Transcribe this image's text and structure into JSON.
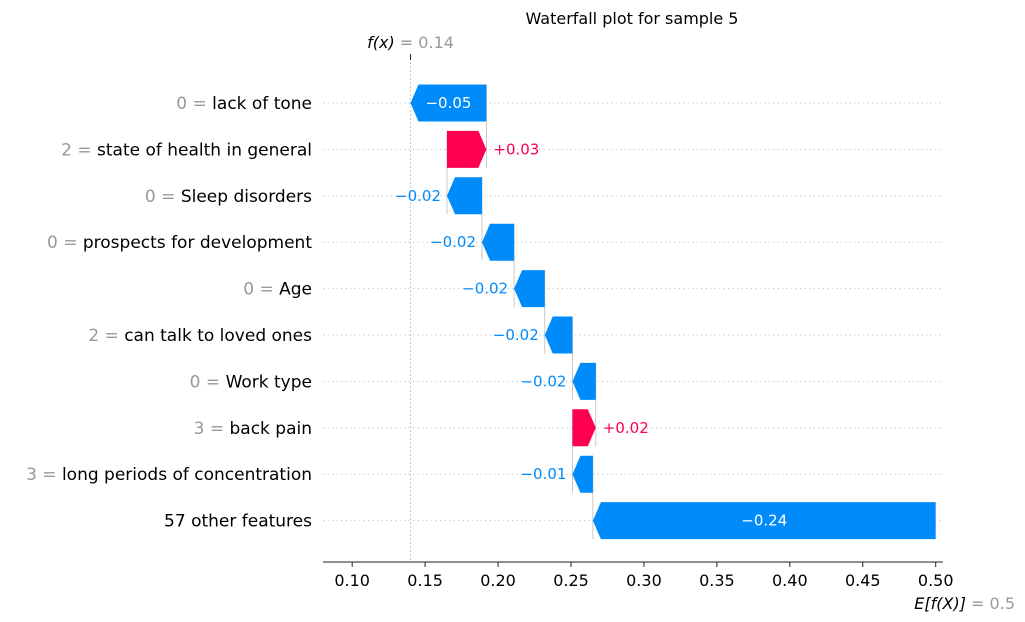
{
  "chart_data": {
    "type": "waterfall",
    "title": "Waterfall plot for sample 5",
    "base_value": 0.5,
    "base_value_label": "0.5",
    "base_value_name": "E[f(X)]",
    "output_value": 0.14,
    "output_value_label": "0.14",
    "output_value_name": "f(x)",
    "xlim": [
      0.08,
      0.505
    ],
    "x_ticks": [
      {
        "value": 0.1,
        "label": "0.10"
      },
      {
        "value": 0.15,
        "label": "0.15"
      },
      {
        "value": 0.2,
        "label": "0.20"
      },
      {
        "value": 0.25,
        "label": "0.25"
      },
      {
        "value": 0.3,
        "label": "0.30"
      },
      {
        "value": 0.35,
        "label": "0.35"
      },
      {
        "value": 0.4,
        "label": "0.40"
      },
      {
        "value": 0.45,
        "label": "0.45"
      },
      {
        "value": 0.5,
        "label": "0.50"
      }
    ],
    "colors": {
      "positive": "#ff0051",
      "negative": "#008bfb",
      "muted": "#999999"
    },
    "features": [
      {
        "value": "0",
        "name": "lack of tone",
        "start": 0.192,
        "end": 0.14,
        "label": "−0.05"
      },
      {
        "value": "2",
        "name": "state of health in general",
        "start": 0.165,
        "end": 0.192,
        "label": "+0.03"
      },
      {
        "value": "0",
        "name": "Sleep disorders",
        "start": 0.189,
        "end": 0.165,
        "label": "−0.02"
      },
      {
        "value": "0",
        "name": "prospects for development",
        "start": 0.211,
        "end": 0.189,
        "label": "−0.02"
      },
      {
        "value": "0",
        "name": "Age",
        "start": 0.232,
        "end": 0.211,
        "label": "−0.02"
      },
      {
        "value": "2",
        "name": "can talk to loved ones",
        "start": 0.251,
        "end": 0.232,
        "label": "−0.02"
      },
      {
        "value": "0",
        "name": "Work type",
        "start": 0.267,
        "end": 0.251,
        "label": "−0.02"
      },
      {
        "value": "3",
        "name": "back pain",
        "start": 0.251,
        "end": 0.267,
        "label": "+0.02"
      },
      {
        "value": "3",
        "name": "long periods of concentration",
        "start": 0.265,
        "end": 0.251,
        "label": "−0.01"
      },
      {
        "value": "",
        "name": "57 other features",
        "start": 0.5,
        "end": 0.265,
        "label": "−0.24"
      }
    ]
  }
}
